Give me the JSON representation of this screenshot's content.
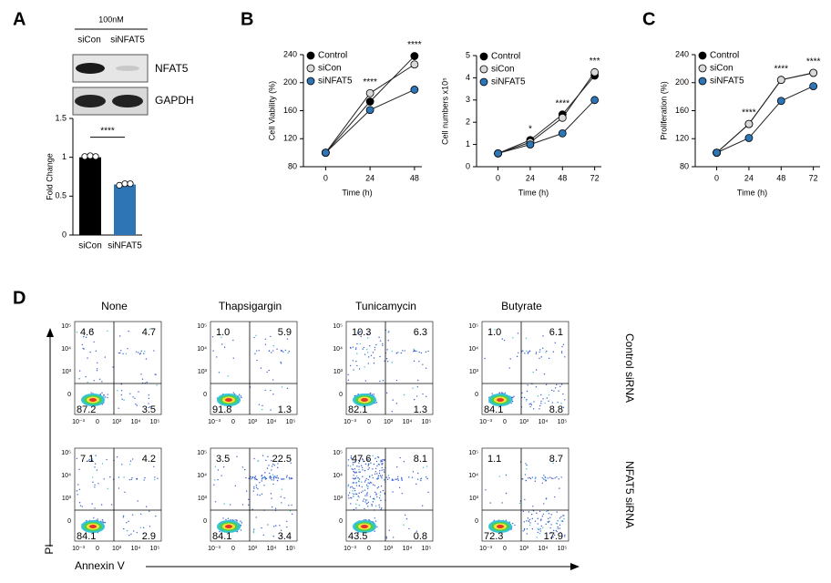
{
  "panel_labels": [
    "A",
    "B",
    "C",
    "D"
  ],
  "blot": {
    "treatment": "100nM",
    "lanes": [
      "siCon",
      "siNFAT5"
    ],
    "proteins": [
      "NFAT5",
      "GAPDH"
    ]
  },
  "chart_data": [
    {
      "type": "bar",
      "categories": [
        "siCon",
        "siNFAT5"
      ],
      "values": [
        1.0,
        0.65
      ],
      "colors": [
        "#000000",
        "#2e75b6"
      ],
      "replicates": [
        [
          1.01,
          1.02,
          1.01
        ],
        [
          0.64,
          0.66,
          0.66
        ]
      ],
      "ylabel": "Fold Change",
      "ylim": [
        0,
        1.5
      ],
      "yticks": [
        0,
        0.5,
        1,
        1.5
      ],
      "significance": "****"
    },
    {
      "type": "line",
      "ylabel": "Cell Viability (%)",
      "xlabel": "Time  (h)",
      "x": [
        0,
        24,
        48
      ],
      "xlim": [
        -12,
        52
      ],
      "xticks": [
        0,
        24,
        48
      ],
      "ylim": [
        80,
        240
      ],
      "yticks": [
        80,
        120,
        160,
        200,
        240
      ],
      "series": [
        {
          "name": "Control",
          "color": "#000000",
          "values": [
            100,
            173,
            238
          ]
        },
        {
          "name": "siCon",
          "color": "#d9d9d9",
          "values": [
            100,
            185,
            226
          ]
        },
        {
          "name": "siNFAT5",
          "color": "#2e75b6",
          "values": [
            100,
            161,
            190
          ]
        }
      ],
      "annotations": [
        {
          "x": 24,
          "text": "****"
        },
        {
          "x": 48,
          "text": "****"
        }
      ]
    },
    {
      "type": "line",
      "ylabel": "Cell numbers x10⁵",
      "xlabel": "Time  (h)",
      "x": [
        0,
        24,
        48,
        72
      ],
      "xlim": [
        -16,
        77
      ],
      "xticks": [
        0,
        24,
        48,
        72
      ],
      "ylim": [
        0,
        5
      ],
      "yticks": [
        0,
        1,
        2,
        3,
        4,
        5
      ],
      "series": [
        {
          "name": "Control",
          "color": "#000000",
          "values": [
            0.6,
            1.2,
            2.35,
            4.1
          ]
        },
        {
          "name": "siCon",
          "color": "#d9d9d9",
          "values": [
            0.6,
            1.1,
            2.2,
            4.25
          ]
        },
        {
          "name": "siNFAT5",
          "color": "#2e75b6",
          "values": [
            0.6,
            1.0,
            1.5,
            3.0
          ]
        }
      ],
      "annotations": [
        {
          "x": 24,
          "text": "*"
        },
        {
          "x": 48,
          "text": "****"
        },
        {
          "x": 72,
          "text": "***"
        }
      ]
    },
    {
      "type": "line",
      "ylabel": "Proliferation (%)",
      "xlabel": "Time  (h)",
      "x": [
        0,
        24,
        48,
        72
      ],
      "xlim": [
        -16,
        77
      ],
      "xticks": [
        0,
        24,
        48,
        72
      ],
      "ylim": [
        80,
        240
      ],
      "yticks": [
        80,
        120,
        160,
        200,
        240
      ],
      "series": [
        {
          "name": "Control",
          "color": "#000000",
          "values": [
            100,
            141,
            204,
            214
          ]
        },
        {
          "name": "siCon",
          "color": "#d9d9d9",
          "values": [
            100,
            141,
            204,
            214
          ]
        },
        {
          "name": "siNFAT5",
          "color": "#2e75b6",
          "values": [
            100,
            121,
            174,
            195
          ]
        }
      ],
      "annotations": [
        {
          "x": 24,
          "text": "****"
        },
        {
          "x": 48,
          "text": "****"
        },
        {
          "x": 72,
          "text": "****"
        }
      ]
    }
  ],
  "flow": {
    "columns": [
      "None",
      "Thapsigargin",
      "Tunicamycin",
      "Butyrate"
    ],
    "rows": [
      "Control siRNA",
      "NFAT5 siRNA"
    ],
    "xticks": [
      "10⁻³",
      "0",
      "10³",
      "10⁴",
      "10⁵"
    ],
    "yticks": [
      "10⁵",
      "10⁴",
      "10³",
      "0"
    ],
    "ylabel": "PI",
    "xlabel": "Annexin V",
    "quadrants": [
      [
        [
          "4.6",
          "4.7",
          "87.2",
          "3.5"
        ],
        [
          "1.0",
          "5.9",
          "91.8",
          "1.3"
        ],
        [
          "10.3",
          "6.3",
          "82.1",
          "1.3"
        ],
        [
          "1.0",
          "6.1",
          "84.1",
          "8.8"
        ]
      ],
      [
        [
          "7.1",
          "4.2",
          "84.1",
          "2.9"
        ],
        [
          "3.5",
          "22.5",
          "84.1",
          "3.4"
        ],
        [
          "47.6",
          "8.1",
          "43.5",
          "0.8"
        ],
        [
          "1.1",
          "8.7",
          "72.3",
          "17.9"
        ]
      ]
    ]
  }
}
